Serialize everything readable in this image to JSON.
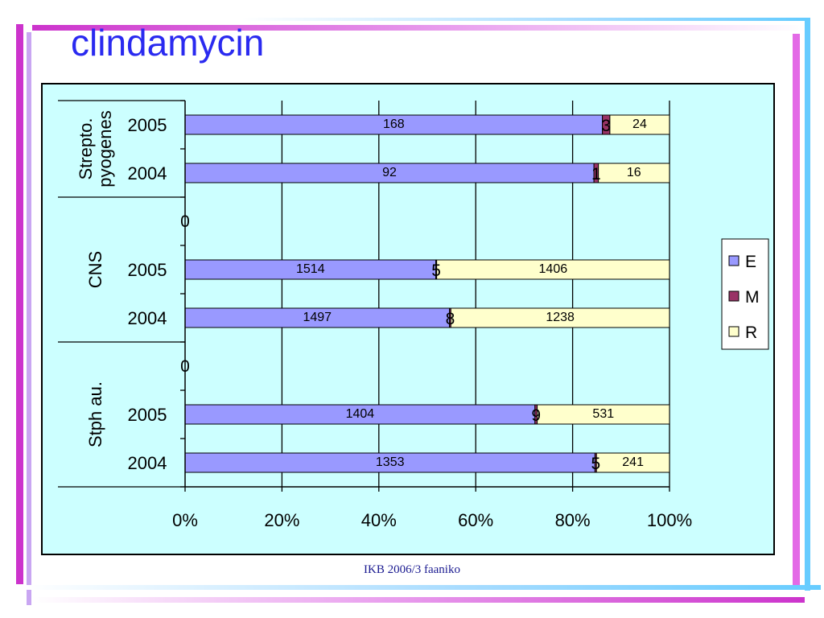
{
  "slide": {
    "title": "clindamycin",
    "footer": "IKB 2006/3 faaniko"
  },
  "colors": {
    "plot_background": "#ccffff",
    "E": "#9999ff",
    "M": "#993366",
    "R": "#ffffcc",
    "title": "#2a2af0",
    "deco_magenta": "#cc33cc",
    "deco_cyan": "#66ccff"
  },
  "chart_data": {
    "type": "bar",
    "orientation": "horizontal",
    "stacked": "percent",
    "title": "",
    "xlabel": "",
    "ylabel": "",
    "xlim": [
      0,
      100
    ],
    "x_ticks": [
      "0%",
      "20%",
      "40%",
      "60%",
      "80%",
      "100%"
    ],
    "grid": "vertical",
    "legend": {
      "position": "right",
      "entries": [
        "E",
        "M",
        "R"
      ]
    },
    "series": [
      {
        "name": "E",
        "values": [
          1353,
          1404,
          0,
          1497,
          1514,
          0,
          92,
          168
        ]
      },
      {
        "name": "M",
        "values": [
          5,
          9,
          0,
          8,
          5,
          0,
          1,
          3
        ]
      },
      {
        "name": "R",
        "values": [
          241,
          531,
          0,
          1238,
          1406,
          0,
          16,
          24
        ]
      }
    ],
    "categories": [
      "2004",
      "2005",
      "",
      "2004",
      "2005",
      "",
      "2004",
      "2005"
    ],
    "groups": [
      {
        "label": "Stph au.",
        "categories": [
          "2004",
          "2005",
          ""
        ]
      },
      {
        "label": "CNS",
        "categories": [
          "2004",
          "2005",
          ""
        ]
      },
      {
        "label": "Strepto. pyogenes",
        "lines": [
          "Strepto.",
          "pyogenes"
        ],
        "categories": [
          "2004",
          "2005"
        ]
      }
    ],
    "data_labels": [
      {
        "E": "1353",
        "M": "5",
        "R": "241"
      },
      {
        "E": "1404",
        "M": "9",
        "R": "531"
      },
      {
        "zero": "0"
      },
      {
        "E": "1497",
        "M": "8",
        "R": "1238"
      },
      {
        "E": "1514",
        "M": "5",
        "R": "1406"
      },
      {
        "zero": "0"
      },
      {
        "E": "92",
        "M": "1",
        "R": "16"
      },
      {
        "E": "168",
        "M": "3",
        "R": "24"
      }
    ]
  }
}
